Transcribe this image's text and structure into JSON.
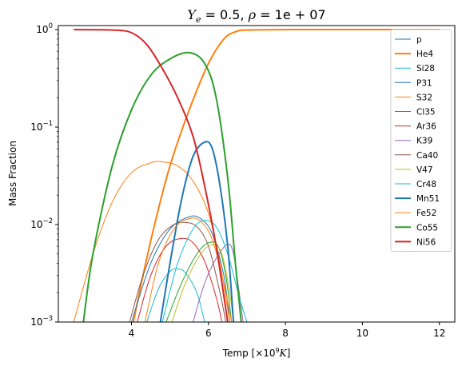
{
  "chart_data": {
    "type": "line",
    "title": "Y_e = 0.5, ρ = 1e+07",
    "title_parts": {
      "y": "Y",
      "y_sub": "e",
      "mid": " = 0.5, ",
      "rho": "ρ",
      "tail": " = 1e + 07"
    },
    "xlabel_parts": {
      "pre": "Temp [×10",
      "sup": "9",
      "k": "K",
      "post": "]"
    },
    "ylabel": "Mass Fraction",
    "xlim": [
      2.1,
      12.4
    ],
    "ylim": [
      0.001,
      1.1
    ],
    "yscale": "log",
    "x_ticks": [
      4,
      6,
      8,
      10,
      12
    ],
    "y_ticks": [
      {
        "value": 0.001,
        "base": "10",
        "exp": "−3"
      },
      {
        "value": 0.01,
        "base": "10",
        "exp": "−2"
      },
      {
        "value": 0.1,
        "base": "10",
        "exp": "−1"
      },
      {
        "value": 1,
        "base": "10",
        "exp": "0"
      }
    ],
    "legend_position": "top-right",
    "series": [
      {
        "name": "p",
        "color": "#1f77b4",
        "linewidth": 1,
        "points": []
      },
      {
        "name": "He4",
        "color": "#ff7f0e",
        "linewidth": 2,
        "points": [
          [
            4.05,
            0.001
          ],
          [
            4.3,
            0.003
          ],
          [
            4.6,
            0.01
          ],
          [
            5.0,
            0.04
          ],
          [
            5.5,
            0.15
          ],
          [
            6.0,
            0.45
          ],
          [
            6.4,
            0.8
          ],
          [
            6.7,
            0.95
          ],
          [
            7.0,
            0.99
          ],
          [
            8,
            1.0
          ],
          [
            10,
            1.0
          ],
          [
            12,
            1.0
          ]
        ]
      },
      {
        "name": "Si28",
        "color": "#17becf",
        "linewidth": 1,
        "points": [
          [
            4.4,
            0.001
          ],
          [
            4.7,
            0.0022
          ],
          [
            5.0,
            0.0033
          ],
          [
            5.2,
            0.0035
          ],
          [
            5.4,
            0.0032
          ],
          [
            5.7,
            0.002
          ],
          [
            5.9,
            0.001
          ]
        ]
      },
      {
        "name": "P31",
        "color": "#1f77b4",
        "linewidth": 1,
        "points": [
          [
            4.0,
            0.001
          ],
          [
            4.5,
            0.004
          ],
          [
            5.0,
            0.009
          ],
          [
            5.5,
            0.012
          ],
          [
            5.8,
            0.0115
          ],
          [
            6.1,
            0.008
          ],
          [
            6.4,
            0.003
          ],
          [
            6.55,
            0.001
          ]
        ]
      },
      {
        "name": "S32",
        "color": "#ff7f0e",
        "linewidth": 1,
        "points": [
          [
            2.5,
            0.001
          ],
          [
            3.0,
            0.005
          ],
          [
            3.5,
            0.017
          ],
          [
            4.0,
            0.034
          ],
          [
            4.5,
            0.043
          ],
          [
            4.8,
            0.044
          ],
          [
            5.2,
            0.04
          ],
          [
            5.6,
            0.028
          ],
          [
            6.0,
            0.013
          ],
          [
            6.3,
            0.004
          ],
          [
            6.55,
            0.001
          ]
        ]
      },
      {
        "name": "Cl35",
        "color": "#2ca02c",
        "linewidth": 1,
        "points": [
          [
            4.9,
            0.001
          ],
          [
            5.3,
            0.0025
          ],
          [
            5.7,
            0.005
          ],
          [
            6.0,
            0.0065
          ],
          [
            6.25,
            0.006
          ],
          [
            6.45,
            0.003
          ],
          [
            6.6,
            0.001
          ]
        ]
      },
      {
        "name": "Ar36",
        "color": "#d62728",
        "linewidth": 1,
        "points": [
          [
            4.15,
            0.001
          ],
          [
            4.5,
            0.003
          ],
          [
            4.9,
            0.006
          ],
          [
            5.3,
            0.0072
          ],
          [
            5.6,
            0.0065
          ],
          [
            5.9,
            0.0042
          ],
          [
            6.2,
            0.0018
          ],
          [
            6.35,
            0.001
          ]
        ]
      },
      {
        "name": "K39",
        "color": "#9467bd",
        "linewidth": 1,
        "points": [
          [
            5.6,
            0.001
          ],
          [
            5.9,
            0.0025
          ],
          [
            6.2,
            0.0045
          ],
          [
            6.5,
            0.0063
          ],
          [
            6.65,
            0.005
          ],
          [
            6.8,
            0.002
          ],
          [
            6.9,
            0.001
          ]
        ]
      },
      {
        "name": "Ca40",
        "color": "#8c564b",
        "linewidth": 1,
        "points": [
          [
            3.95,
            0.001
          ],
          [
            4.3,
            0.003
          ],
          [
            4.7,
            0.007
          ],
          [
            5.1,
            0.01
          ],
          [
            5.4,
            0.0105
          ],
          [
            5.7,
            0.0095
          ],
          [
            6.0,
            0.006
          ],
          [
            6.3,
            0.002
          ],
          [
            6.45,
            0.001
          ]
        ]
      },
      {
        "name": "V47",
        "color": "#bcbd22",
        "linewidth": 1,
        "points": [
          [
            5.05,
            0.001
          ],
          [
            5.4,
            0.0025
          ],
          [
            5.8,
            0.005
          ],
          [
            6.1,
            0.0062
          ],
          [
            6.35,
            0.005
          ],
          [
            6.55,
            0.002
          ],
          [
            6.65,
            0.001
          ]
        ]
      },
      {
        "name": "Cr48",
        "color": "#17becf",
        "linewidth": 1,
        "points": [
          [
            4.8,
            0.001
          ],
          [
            5.2,
            0.004
          ],
          [
            5.6,
            0.009
          ],
          [
            5.9,
            0.011
          ],
          [
            6.2,
            0.0095
          ],
          [
            6.5,
            0.005
          ],
          [
            6.8,
            0.0018
          ],
          [
            7.0,
            0.001
          ]
        ]
      },
      {
        "name": "Mn51",
        "color": "#1f77b4",
        "linewidth": 2,
        "points": [
          [
            4.75,
            0.001
          ],
          [
            5.0,
            0.004
          ],
          [
            5.3,
            0.018
          ],
          [
            5.6,
            0.05
          ],
          [
            5.9,
            0.07
          ],
          [
            6.1,
            0.06
          ],
          [
            6.3,
            0.025
          ],
          [
            6.5,
            0.006
          ],
          [
            6.65,
            0.001
          ]
        ]
      },
      {
        "name": "Fe52",
        "color": "#ff7f0e",
        "linewidth": 1,
        "points": [
          [
            4.35,
            0.001
          ],
          [
            4.7,
            0.004
          ],
          [
            5.1,
            0.009
          ],
          [
            5.5,
            0.0115
          ],
          [
            5.8,
            0.0108
          ],
          [
            6.1,
            0.007
          ],
          [
            6.4,
            0.0025
          ],
          [
            6.6,
            0.001
          ]
        ]
      },
      {
        "name": "Co55",
        "color": "#2ca02c",
        "linewidth": 2,
        "points": [
          [
            2.75,
            0.001
          ],
          [
            3.0,
            0.005
          ],
          [
            3.5,
            0.04
          ],
          [
            4.0,
            0.15
          ],
          [
            4.5,
            0.34
          ],
          [
            5.0,
            0.5
          ],
          [
            5.5,
            0.58
          ],
          [
            5.9,
            0.45
          ],
          [
            6.2,
            0.2
          ],
          [
            6.5,
            0.03
          ],
          [
            6.7,
            0.004
          ],
          [
            6.85,
            0.001
          ]
        ]
      },
      {
        "name": "Ni56",
        "color": "#d62728",
        "linewidth": 2,
        "points": [
          [
            2.5,
            1.0
          ],
          [
            3.5,
            0.99
          ],
          [
            4.0,
            0.93
          ],
          [
            4.4,
            0.7
          ],
          [
            4.8,
            0.4
          ],
          [
            5.2,
            0.2
          ],
          [
            5.6,
            0.08
          ],
          [
            5.9,
            0.025
          ],
          [
            6.2,
            0.006
          ],
          [
            6.5,
            0.001
          ]
        ]
      }
    ]
  }
}
